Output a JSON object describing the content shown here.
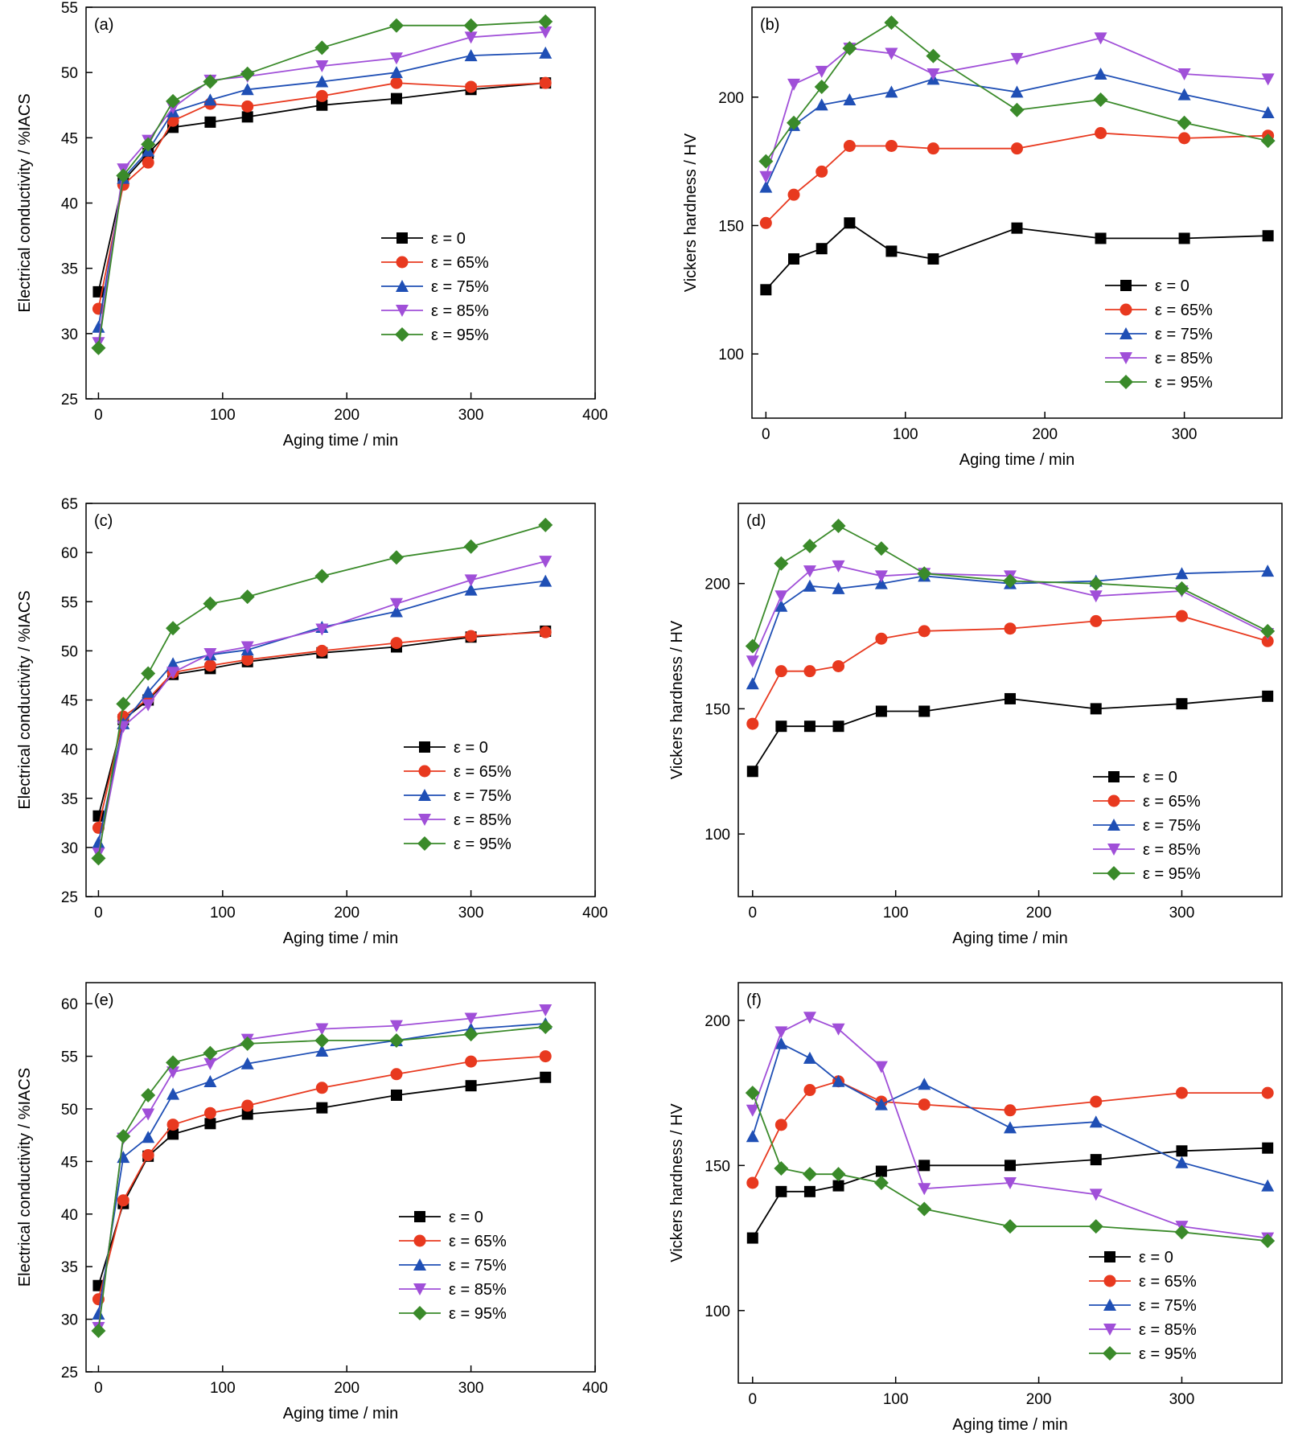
{
  "series_style": [
    {
      "color": "#000000",
      "marker": "square"
    },
    {
      "color": "#e8391f",
      "marker": "circle"
    },
    {
      "color": "#1f4fb5",
      "marker": "triangle-up"
    },
    {
      "color": "#a04fd8",
      "marker": "triangle-down"
    },
    {
      "color": "#3a8a2a",
      "marker": "diamond"
    }
  ],
  "chart_data": [
    {
      "panel": "(a)",
      "type": "line",
      "xlabel": "Aging time / min",
      "ylabel": "Electrical conductivity / %IACS",
      "xlim": [
        -10,
        400
      ],
      "ylim": [
        25,
        55
      ],
      "xticks": [
        0,
        100,
        200,
        300,
        400
      ],
      "yticks": [
        25,
        30,
        35,
        40,
        45,
        50,
        55
      ],
      "legend_position": "center-right",
      "x": [
        0,
        20,
        40,
        60,
        90,
        120,
        180,
        240,
        300,
        360
      ],
      "series": [
        {
          "name": "ε = 0",
          "values": [
            33.2,
            41.7,
            43.8,
            45.8,
            46.2,
            46.6,
            47.5,
            48.0,
            48.7,
            49.2
          ]
        },
        {
          "name": "ε = 65%",
          "values": [
            31.9,
            41.4,
            43.1,
            46.3,
            47.6,
            47.4,
            48.2,
            49.2,
            48.9,
            49.2
          ]
        },
        {
          "name": "ε = 75%",
          "values": [
            30.5,
            41.9,
            44.0,
            47.0,
            47.9,
            48.7,
            49.3,
            50.0,
            51.3,
            51.5
          ]
        },
        {
          "name": "ε = 85%",
          "values": [
            29.3,
            42.6,
            44.8,
            47.3,
            49.4,
            49.7,
            50.5,
            51.1,
            52.7,
            53.1
          ]
        },
        {
          "name": "ε = 95%",
          "values": [
            28.9,
            42.1,
            44.5,
            47.8,
            49.3,
            49.9,
            51.9,
            53.6,
            53.6,
            53.9
          ]
        }
      ]
    },
    {
      "panel": "(b)",
      "type": "line",
      "xlabel": "Aging time / min",
      "ylabel": "Vickers hardness / HV",
      "xlim": [
        -10,
        370
      ],
      "ylim": [
        75,
        235
      ],
      "xticks": [
        0,
        100,
        200,
        300
      ],
      "yticks": [
        100,
        150,
        200
      ],
      "legend_position": "bottom-right",
      "x": [
        0,
        20,
        40,
        60,
        90,
        120,
        180,
        240,
        300,
        360
      ],
      "series": [
        {
          "name": "ε = 0",
          "values": [
            125,
            137,
            141,
            151,
            140,
            137,
            149,
            145,
            145,
            146
          ]
        },
        {
          "name": "ε = 65%",
          "values": [
            151,
            162,
            171,
            181,
            181,
            180,
            180,
            186,
            184,
            185
          ]
        },
        {
          "name": "ε = 75%",
          "values": [
            165,
            189,
            197,
            199,
            202,
            207,
            202,
            209,
            201,
            194
          ]
        },
        {
          "name": "ε = 85%",
          "values": [
            169,
            205,
            210,
            219,
            217,
            209,
            215,
            223,
            209,
            207
          ]
        },
        {
          "name": "ε = 95%",
          "values": [
            175,
            190,
            204,
            219,
            229,
            216,
            195,
            199,
            190,
            183
          ]
        }
      ]
    },
    {
      "panel": "(c)",
      "type": "line",
      "xlabel": "Aging time / min",
      "ylabel": "Electrical conductivity / %IACS",
      "xlim": [
        -10,
        400
      ],
      "ylim": [
        25,
        65
      ],
      "xticks": [
        0,
        100,
        200,
        300,
        400
      ],
      "yticks": [
        25,
        30,
        35,
        40,
        45,
        50,
        55,
        60,
        65
      ],
      "legend_position": "center-right",
      "x": [
        0,
        20,
        40,
        60,
        90,
        120,
        180,
        240,
        300,
        360
      ],
      "series": [
        {
          "name": "ε = 0",
          "values": [
            33.2,
            43.0,
            45.0,
            47.6,
            48.2,
            48.9,
            49.8,
            50.4,
            51.4,
            52.0
          ]
        },
        {
          "name": "ε = 65%",
          "values": [
            32.0,
            43.3,
            45.1,
            47.8,
            48.5,
            49.1,
            50.0,
            50.8,
            51.5,
            51.9
          ]
        },
        {
          "name": "ε = 75%",
          "values": [
            30.5,
            42.6,
            45.8,
            48.7,
            49.6,
            50.1,
            52.4,
            54.0,
            56.2,
            57.1
          ]
        },
        {
          "name": "ε = 85%",
          "values": [
            29.4,
            42.3,
            44.5,
            47.8,
            49.7,
            50.4,
            52.2,
            54.8,
            57.2,
            59.1
          ]
        },
        {
          "name": "ε = 95%",
          "values": [
            28.9,
            44.6,
            47.7,
            52.3,
            54.8,
            55.5,
            57.6,
            59.5,
            60.6,
            62.8
          ]
        }
      ]
    },
    {
      "panel": "(d)",
      "type": "line",
      "xlabel": "Aging time / min",
      "ylabel": "Vickers hardness / HV",
      "xlim": [
        -10,
        370
      ],
      "ylim": [
        75,
        232
      ],
      "xticks": [
        0,
        100,
        200,
        300
      ],
      "yticks": [
        100,
        150,
        200
      ],
      "legend_position": "bottom-right",
      "x": [
        0,
        20,
        40,
        60,
        90,
        120,
        180,
        240,
        300,
        360
      ],
      "series": [
        {
          "name": "ε = 0",
          "values": [
            125,
            143,
            143,
            143,
            149,
            149,
            154,
            150,
            152,
            155
          ]
        },
        {
          "name": "ε = 65%",
          "values": [
            144,
            165,
            165,
            167,
            178,
            181,
            182,
            185,
            187,
            177
          ]
        },
        {
          "name": "ε = 75%",
          "values": [
            160,
            191,
            199,
            198,
            200,
            203,
            200,
            201,
            204,
            205
          ]
        },
        {
          "name": "ε = 85%",
          "values": [
            169,
            195,
            205,
            207,
            203,
            204,
            203,
            195,
            197,
            180
          ]
        },
        {
          "name": "ε = 95%",
          "values": [
            175,
            208,
            215,
            223,
            214,
            204,
            201,
            200,
            198,
            181
          ]
        }
      ]
    },
    {
      "panel": "(e)",
      "type": "line",
      "xlabel": "Aging time / min",
      "ylabel": "Electrical conductivity / %IACS",
      "xlim": [
        -10,
        400
      ],
      "ylim": [
        25,
        62
      ],
      "xticks": [
        0,
        100,
        200,
        300,
        400
      ],
      "yticks": [
        25,
        30,
        35,
        40,
        45,
        50,
        55,
        60
      ],
      "legend_position": "bottom-right",
      "x": [
        0,
        20,
        40,
        60,
        90,
        120,
        180,
        240,
        300,
        360
      ],
      "series": [
        {
          "name": "ε = 0",
          "values": [
            33.2,
            41.0,
            45.5,
            47.6,
            48.6,
            49.5,
            50.1,
            51.3,
            52.2,
            53.0
          ]
        },
        {
          "name": "ε = 65%",
          "values": [
            31.9,
            41.3,
            45.6,
            48.5,
            49.6,
            50.3,
            52.0,
            53.3,
            54.5,
            55.0
          ]
        },
        {
          "name": "ε = 75%",
          "values": [
            30.5,
            45.4,
            47.3,
            51.4,
            52.6,
            54.3,
            55.5,
            56.5,
            57.6,
            58.1
          ]
        },
        {
          "name": "ε = 85%",
          "values": [
            29.2,
            47.2,
            49.5,
            53.5,
            54.3,
            56.6,
            57.6,
            57.9,
            58.6,
            59.4
          ]
        },
        {
          "name": "ε = 95%",
          "values": [
            28.9,
            47.4,
            51.3,
            54.4,
            55.3,
            56.2,
            56.5,
            56.5,
            57.1,
            57.8
          ]
        }
      ]
    },
    {
      "panel": "(f)",
      "type": "line",
      "xlabel": "Aging time / min",
      "ylabel": "Vickers hardness / HV",
      "xlim": [
        -10,
        370
      ],
      "ylim": [
        75,
        213
      ],
      "xticks": [
        0,
        100,
        200,
        300
      ],
      "yticks": [
        100,
        150,
        200
      ],
      "legend_position": "bottom-right",
      "x": [
        0,
        20,
        40,
        60,
        90,
        120,
        180,
        240,
        300,
        360
      ],
      "series": [
        {
          "name": "ε = 0",
          "values": [
            125,
            141,
            141,
            143,
            148,
            150,
            150,
            152,
            155,
            156
          ]
        },
        {
          "name": "ε = 65%",
          "values": [
            144,
            164,
            176,
            179,
            172,
            171,
            169,
            172,
            175,
            175
          ]
        },
        {
          "name": "ε = 75%",
          "values": [
            160,
            192,
            187,
            179,
            171,
            178,
            163,
            165,
            151,
            143
          ]
        },
        {
          "name": "ε = 85%",
          "values": [
            169,
            196,
            201,
            197,
            184,
            142,
            144,
            140,
            129,
            125
          ]
        },
        {
          "name": "ε = 95%",
          "values": [
            175,
            149,
            147,
            147,
            144,
            135,
            129,
            129,
            127,
            124
          ]
        }
      ]
    }
  ]
}
